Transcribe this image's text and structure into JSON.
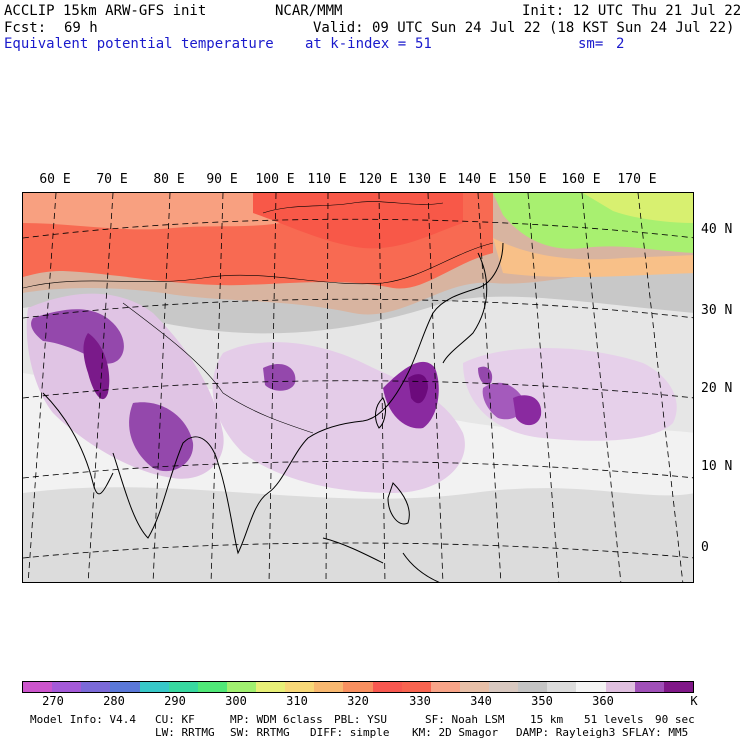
{
  "header": {
    "model": "ACCLIP 15km ARW-GFS init",
    "org": "NCAR/MMM",
    "init": "Init: 12 UTC Thu 21 Jul 22",
    "fcst_label": "Fcst:",
    "fcst_value": "69 h",
    "valid": "Valid: 09 UTC Sun 24 Jul 22 (18 KST Sun 24 Jul 22)",
    "field": "Equivalent potential temperature",
    "level_label": "at k-index =",
    "level_value": "51",
    "smooth_label": "sm=",
    "smooth_value": "2"
  },
  "map": {
    "lon_labels": [
      "60 E",
      "70 E",
      "80 E",
      "90 E",
      "100 E",
      "110 E",
      "120 E",
      "130 E",
      "140 E",
      "150 E",
      "160 E",
      "170 E"
    ],
    "lat_labels": [
      "40 N",
      "30 N",
      "20 N",
      "10 N",
      "0"
    ]
  },
  "colorbar": {
    "colors": [
      "#cc55cc",
      "#a45ad8",
      "#7b6ad8",
      "#5a78d8",
      "#38c8c8",
      "#38d8a0",
      "#50e878",
      "#a0f070",
      "#e8f078",
      "#f8d878",
      "#f8b870",
      "#f89060",
      "#f85850",
      "#f86450",
      "#f8a488",
      "#e8c0a8",
      "#d8c8c0",
      "#c4c4c4",
      "#dcdcdc",
      "#f4f4f4",
      "#e0c0e0",
      "#a050b8",
      "#801888"
    ],
    "ticks": [
      "270",
      "280",
      "290",
      "300",
      "310",
      "320",
      "330",
      "340",
      "350",
      "360"
    ],
    "unit": "K"
  },
  "footer": {
    "line1": {
      "model_info": "Model Info: V4.4",
      "cu": "CU: KF",
      "mp": "MP: WDM 6class",
      "pbl": "PBL: YSU",
      "sf": "SF: Noah LSM",
      "res": "15 km",
      "levels": "51 levels",
      "dt": "90 sec"
    },
    "line2": {
      "lw": "LW: RRTMG",
      "sw": "SW: RRTMG",
      "diff": "DIFF: simple",
      "km": "KM: 2D Smagor",
      "damp": "DAMP: Rayleigh3",
      "sflay": "SFLAY: MM5"
    }
  }
}
